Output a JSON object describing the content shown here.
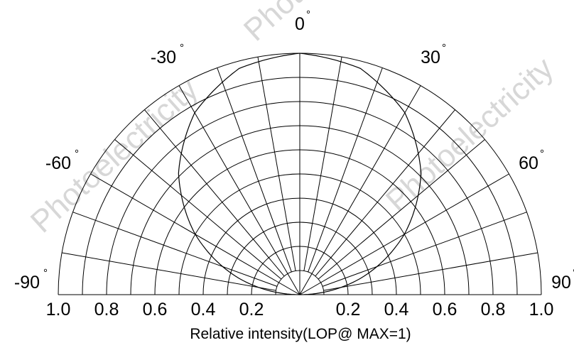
{
  "chart_data": {
    "type": "polar",
    "title": "",
    "angle_ticks": [
      {
        "angle": -90,
        "label": "-90",
        "unit": "°"
      },
      {
        "angle": -60,
        "label": "-60",
        "unit": "°"
      },
      {
        "angle": -30,
        "label": "-30",
        "unit": "°"
      },
      {
        "angle": 0,
        "label": "0",
        "unit": "°"
      },
      {
        "angle": 30,
        "label": "30",
        "unit": "°"
      },
      {
        "angle": 60,
        "label": "60",
        "unit": "°"
      },
      {
        "angle": 90,
        "label": "90",
        "unit": "°"
      }
    ],
    "angle_range": [
      -90,
      90
    ],
    "angular_grid_step": 10,
    "radial_range": [
      0,
      1
    ],
    "radial_grid": [
      0.1,
      0.2,
      0.3,
      0.4,
      0.5,
      0.6,
      0.7,
      0.8,
      0.9,
      1.0
    ],
    "radial_tick_labels_left": [
      "1.0",
      "0.8",
      "0.6",
      "0.4",
      "0.2"
    ],
    "radial_tick_labels_right": [
      "0.2",
      "0.4",
      "0.6",
      "0.8",
      "1.0"
    ],
    "xlabel": "Relative intensity(LOP@ MAX=1)",
    "grid": true,
    "series": [
      {
        "angles": [
          -90,
          -75,
          -60,
          -45,
          -30,
          -15,
          0,
          15,
          30,
          45,
          60,
          75,
          90
        ],
        "values": [
          0.0,
          0.26,
          0.5,
          0.71,
          0.87,
          0.97,
          1.0,
          0.97,
          0.87,
          0.71,
          0.5,
          0.26,
          0.0
        ]
      }
    ]
  },
  "watermark": "Photoelectricity"
}
